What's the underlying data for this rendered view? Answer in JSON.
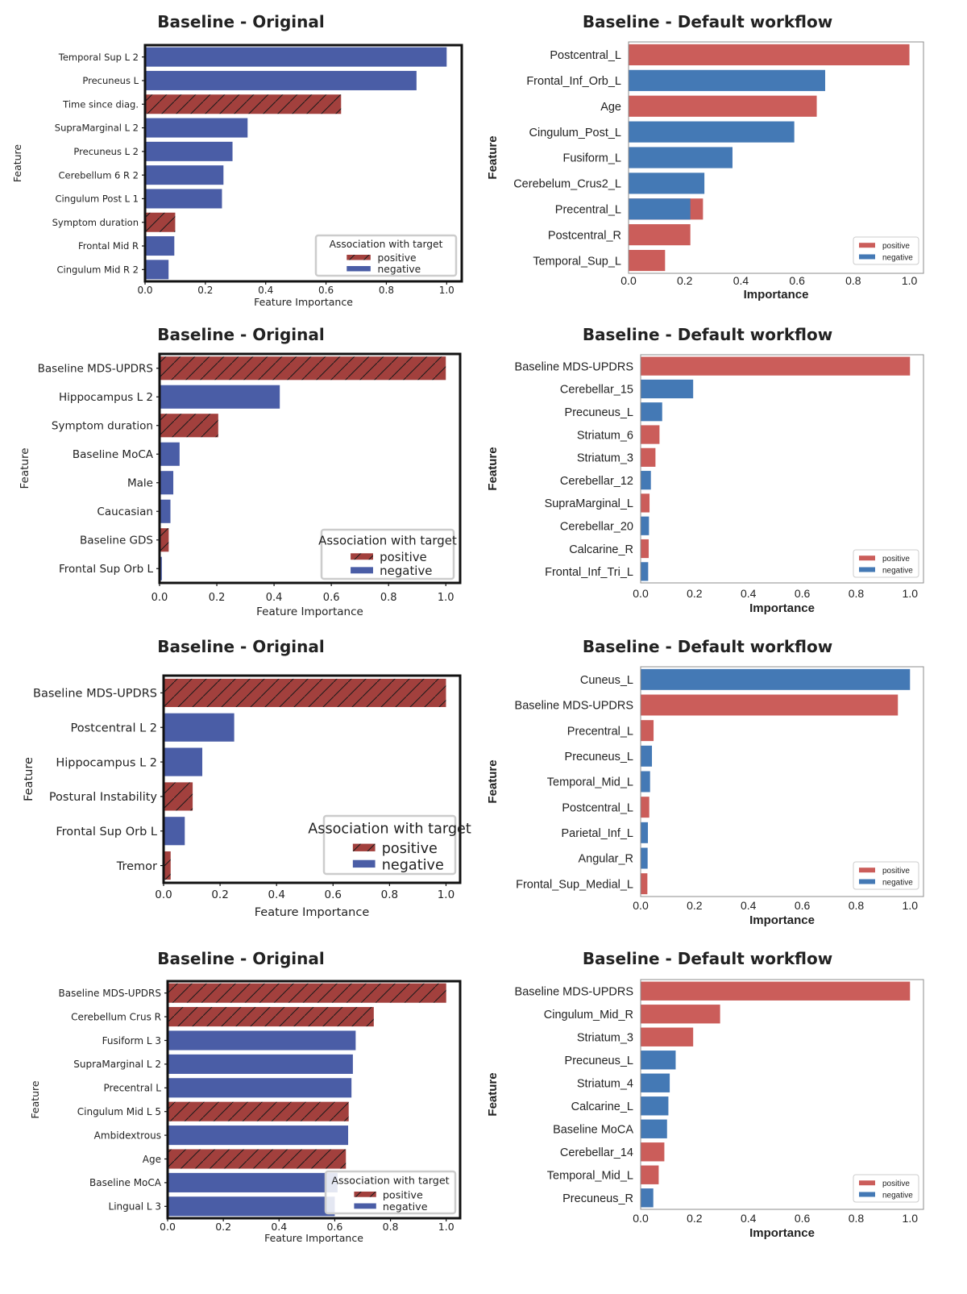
{
  "colors": {
    "orig_positive": "#a2403d",
    "orig_negative": "#4a5da6",
    "def_positive": "#cb5d5a",
    "def_negative": "#4479b5",
    "frame": "#111111",
    "frame_def": "#8c8c8c"
  },
  "legend_text": {
    "orig_title": "Association with target",
    "positive": "positive",
    "negative": "negative"
  },
  "chart_data": [
    {
      "type": "bar",
      "style": "original",
      "title": "Baseline - Original",
      "xlabel": "Feature Importance",
      "ylabel": "Feature",
      "xlim": [
        0,
        1.05
      ],
      "ticks": [
        "0.0",
        "0.2",
        "0.4",
        "0.6",
        "0.8",
        "1.0"
      ],
      "legend": "bottom-right",
      "categories": [
        "Temporal Sup L 2",
        "Precuneus L",
        "Time since diag.",
        "SupraMarginal L 2",
        "Precuneus L 2",
        "Cerebellum 6 R 2",
        "Cingulum Post L 1",
        "Symptom duration",
        "Frontal Mid R",
        "Cingulum Mid R 2"
      ],
      "values": [
        1.0,
        0.9,
        0.65,
        0.34,
        0.29,
        0.26,
        0.255,
        0.1,
        0.097,
        0.078
      ],
      "association": [
        "negative",
        "negative",
        "positive",
        "negative",
        "negative",
        "negative",
        "negative",
        "positive",
        "negative",
        "negative"
      ]
    },
    {
      "type": "bar",
      "style": "default",
      "title": "Baseline - Default workflow",
      "xlabel": "Importance",
      "ylabel": "Feature",
      "xlim": [
        0,
        1.05
      ],
      "ticks": [
        "0.0",
        "0.2",
        "0.4",
        "0.6",
        "0.8",
        "1.0"
      ],
      "legend": "bottom-right",
      "categories": [
        "Postcentral_L",
        "Frontal_Inf_Orb_L",
        "Age",
        "Cingulum_Post_L",
        "Fusiform_L",
        "Cerebelum_Crus2_L",
        "Precentral_L",
        "Postcentral_R",
        "Temporal_Sup_L"
      ],
      "values": [
        1.0,
        0.7,
        0.67,
        0.59,
        0.37,
        0.27,
        0.265,
        0.22,
        0.13
      ],
      "values_negative": [
        0,
        0.7,
        0,
        0.59,
        0.37,
        0.27,
        0.22,
        0,
        0
      ],
      "association": [
        "positive",
        "negative",
        "positive",
        "negative",
        "negative",
        "negative",
        "mixed",
        "positive",
        "positive"
      ]
    },
    {
      "type": "bar",
      "style": "original",
      "title": "Baseline - Original",
      "xlabel": "Feature Importance",
      "ylabel": "Feature",
      "xlim": [
        0,
        1.05
      ],
      "ticks": [
        "0.0",
        "0.2",
        "0.4",
        "0.6",
        "0.8",
        "1.0"
      ],
      "legend": "bottom-right",
      "categories": [
        "Baseline MDS-UPDRS",
        "Hippocampus L 2",
        "Symptom duration",
        "Baseline MoCA",
        "Male",
        "Caucasian",
        "Baseline GDS",
        "Frontal Sup Orb L"
      ],
      "values": [
        1.0,
        0.42,
        0.205,
        0.07,
        0.048,
        0.038,
        0.032,
        0.008
      ],
      "association": [
        "positive",
        "negative",
        "positive",
        "negative",
        "negative",
        "negative",
        "positive",
        "negative"
      ]
    },
    {
      "type": "bar",
      "style": "default",
      "title": "Baseline - Default workflow",
      "xlabel": "Importance",
      "ylabel": "Feature",
      "xlim": [
        0,
        1.05
      ],
      "ticks": [
        "0.0",
        "0.2",
        "0.4",
        "0.6",
        "0.8",
        "1.0"
      ],
      "legend": "bottom-right",
      "categories": [
        "Baseline MDS-UPDRS",
        "Cerebellar_15",
        "Precuneus_L",
        "Striatum_6",
        "Striatum_3",
        "Cerebellar_12",
        "SupraMarginal_L",
        "Cerebellar_20",
        "Calcarine_R",
        "Frontal_Inf_Tri_L"
      ],
      "values": [
        1.0,
        0.195,
        0.08,
        0.07,
        0.055,
        0.038,
        0.033,
        0.031,
        0.03,
        0.028
      ],
      "association": [
        "positive",
        "negative",
        "negative",
        "positive",
        "positive",
        "negative",
        "positive",
        "negative",
        "positive",
        "negative"
      ]
    },
    {
      "type": "bar",
      "style": "original",
      "title": "Baseline - Original",
      "xlabel": "Feature Importance",
      "ylabel": "Feature",
      "xlim": [
        0,
        1.05
      ],
      "ticks": [
        "0.0",
        "0.2",
        "0.4",
        "0.6",
        "0.8",
        "1.0"
      ],
      "legend": "bottom-right",
      "categories": [
        "Baseline MDS-UPDRS",
        "Postcentral L 2",
        "Hippocampus L 2",
        "Postural Instability",
        "Frontal Sup Orb L",
        "Tremor"
      ],
      "values": [
        1.0,
        0.25,
        0.137,
        0.103,
        0.075,
        0.025
      ],
      "association": [
        "positive",
        "negative",
        "negative",
        "positive",
        "negative",
        "positive"
      ]
    },
    {
      "type": "bar",
      "style": "default",
      "title": "Baseline - Default workflow",
      "xlabel": "Importance",
      "ylabel": "Feature",
      "xlim": [
        0,
        1.05
      ],
      "ticks": [
        "0.0",
        "0.2",
        "0.4",
        "0.6",
        "0.8",
        "1.0"
      ],
      "legend": "bottom-right",
      "categories": [
        "Cuneus_L",
        "Baseline MDS-UPDRS",
        "Precentral_L",
        "Precuneus_L",
        "Temporal_Mid_L",
        "Postcentral_L",
        "Parietal_Inf_L",
        "Angular_R",
        "Frontal_Sup_Medial_L"
      ],
      "values": [
        1.0,
        0.955,
        0.048,
        0.042,
        0.035,
        0.032,
        0.027,
        0.026,
        0.025
      ],
      "association": [
        "negative",
        "positive",
        "positive",
        "negative",
        "negative",
        "positive",
        "negative",
        "negative",
        "positive"
      ]
    },
    {
      "type": "bar",
      "style": "original",
      "title": "Baseline - Original",
      "xlabel": "Feature Importance",
      "ylabel": "Feature",
      "xlim": [
        0,
        1.05
      ],
      "ticks": [
        "0.0",
        "0.2",
        "0.4",
        "0.6",
        "0.8",
        "1.0"
      ],
      "legend": "bottom-right",
      "categories": [
        "Baseline MDS-UPDRS",
        "Cerebellum Crus R",
        "Fusiform L 3",
        "SupraMarginal L 2",
        "Precentral L",
        "Cingulum Mid L 5",
        "Ambidextrous",
        "Age",
        "Baseline MoCA",
        "Lingual L 3"
      ],
      "values": [
        1.0,
        0.74,
        0.675,
        0.665,
        0.66,
        0.65,
        0.648,
        0.64,
        0.61,
        0.6
      ],
      "association": [
        "positive",
        "positive",
        "negative",
        "negative",
        "negative",
        "positive",
        "negative",
        "positive",
        "negative",
        "negative"
      ]
    },
    {
      "type": "bar",
      "style": "default",
      "title": "Baseline - Default workflow",
      "xlabel": "Importance",
      "ylabel": "Feature",
      "xlim": [
        0,
        1.05
      ],
      "ticks": [
        "0.0",
        "0.2",
        "0.4",
        "0.6",
        "0.8",
        "1.0"
      ],
      "legend": "bottom-right",
      "categories": [
        "Baseline MDS-UPDRS",
        "Cingulum_Mid_R",
        "Striatum_3",
        "Precuneus_L",
        "Striatum_4",
        "Calcarine_L",
        "Baseline MoCA",
        "Cerebellar_14",
        "Temporal_Mid_L",
        "Precuneus_R"
      ],
      "values": [
        1.0,
        0.295,
        0.195,
        0.13,
        0.108,
        0.103,
        0.098,
        0.088,
        0.067,
        0.047
      ],
      "association": [
        "positive",
        "positive",
        "positive",
        "negative",
        "negative",
        "negative",
        "negative",
        "positive",
        "positive",
        "negative"
      ]
    }
  ]
}
